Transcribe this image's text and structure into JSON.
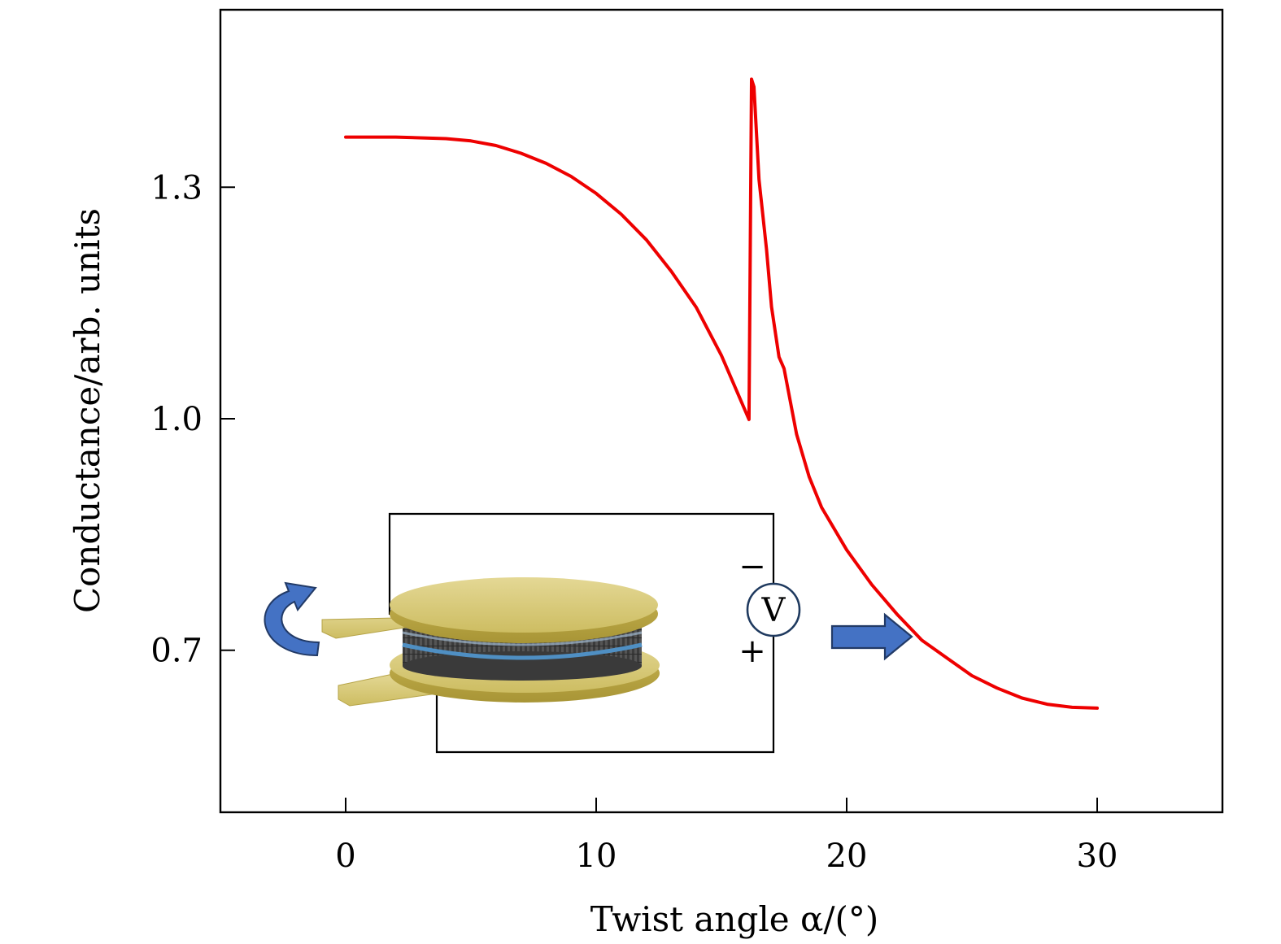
{
  "chart_data": {
    "type": "line",
    "xlabel": "Twist angle α/(°)",
    "ylabel": "Conductance/arb. units",
    "xlim": [
      -5,
      35
    ],
    "ylim": [
      0.49,
      1.53
    ],
    "xticks": [
      0,
      10,
      20,
      30
    ],
    "xtick_labels": [
      "0",
      "10",
      "20",
      "30"
    ],
    "yticks": [
      0.7,
      1.0,
      1.3
    ],
    "ytick_labels": [
      "0.7",
      "1.0",
      "1.3"
    ],
    "grid": false,
    "series": [
      {
        "color": "#ee0000",
        "x": [
          0,
          2,
          4,
          5,
          6,
          7,
          8,
          9,
          10,
          11,
          12,
          13,
          14,
          15,
          16.1,
          16.2,
          16.3,
          16.5,
          16.8,
          17.0,
          17.3,
          17.5,
          18.0,
          18.5,
          19.0,
          20.0,
          21.0,
          22.0,
          23.0,
          24.0,
          25.0,
          26.0,
          27.0,
          28.0,
          29.0,
          30.0
        ],
        "y": [
          1.365,
          1.365,
          1.363,
          1.36,
          1.354,
          1.344,
          1.331,
          1.314,
          1.292,
          1.265,
          1.232,
          1.191,
          1.144,
          1.082,
          0.999,
          1.44,
          1.43,
          1.31,
          1.22,
          1.145,
          1.08,
          1.065,
          0.98,
          0.925,
          0.885,
          0.83,
          0.785,
          0.747,
          0.713,
          0.69,
          0.667,
          0.651,
          0.638,
          0.63,
          0.626,
          0.625
        ]
      }
    ],
    "inset": {
      "voltmeter_label": "V",
      "minus_label": "−",
      "plus_label": "+"
    }
  }
}
